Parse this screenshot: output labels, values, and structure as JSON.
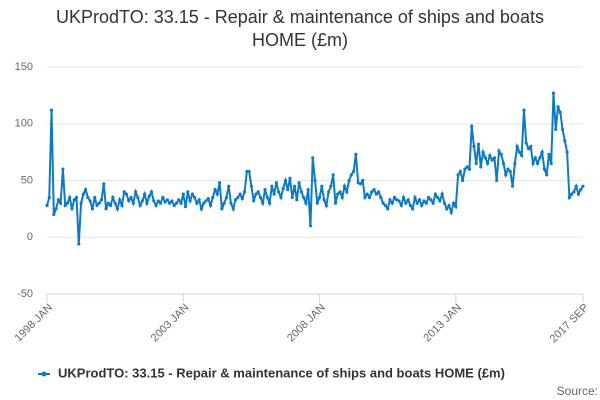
{
  "chart_data": {
    "type": "line",
    "title": "UKProdTO: 33.15 - Repair & maintenance of ships and boats HOME (£m)",
    "source": "Source:",
    "categories": [
      "1998 JAN",
      null,
      null,
      null,
      null,
      null,
      null,
      null,
      null,
      null,
      null,
      null,
      null,
      null,
      null,
      null,
      null,
      null,
      null,
      null,
      null,
      null,
      null,
      null,
      null,
      null,
      null,
      null,
      null,
      null,
      null,
      null,
      null,
      null,
      null,
      null,
      null,
      null,
      null,
      null,
      null,
      null,
      null,
      null,
      null,
      null,
      null,
      null,
      null,
      null,
      null,
      null,
      null,
      null,
      null,
      null,
      null,
      null,
      null,
      null,
      "2003 JAN",
      null,
      null,
      null,
      null,
      null,
      null,
      null,
      null,
      null,
      null,
      null,
      null,
      null,
      null,
      null,
      null,
      null,
      null,
      null,
      null,
      null,
      null,
      null,
      null,
      null,
      null,
      null,
      null,
      null,
      null,
      null,
      null,
      null,
      null,
      null,
      null,
      null,
      null,
      null,
      null,
      null,
      null,
      null,
      null,
      null,
      null,
      null,
      null,
      null,
      null,
      null,
      null,
      null,
      null,
      null,
      null,
      null,
      null,
      null,
      "2008 JAN",
      null,
      null,
      null,
      null,
      null,
      null,
      null,
      null,
      null,
      null,
      null,
      null,
      null,
      null,
      null,
      null,
      null,
      null,
      null,
      null,
      null,
      null,
      null,
      null,
      null,
      null,
      null,
      null,
      null,
      null,
      null,
      null,
      null,
      null,
      null,
      null,
      null,
      null,
      null,
      null,
      null,
      null,
      null,
      null,
      null,
      null,
      null,
      null,
      null,
      null,
      null,
      null,
      null,
      null,
      null,
      null,
      null,
      null,
      null,
      "2013 JAN",
      null,
      null,
      null,
      null,
      null,
      null,
      null,
      null,
      null,
      null,
      null,
      null,
      null,
      null,
      null,
      null,
      null,
      null,
      null,
      null,
      null,
      null,
      null,
      null,
      null,
      null,
      null,
      null,
      null,
      null,
      null,
      null,
      null,
      null,
      null,
      null,
      null,
      null,
      null,
      null,
      null,
      null,
      null,
      null,
      null,
      null,
      null,
      null,
      null,
      null,
      null,
      null,
      null,
      null,
      null,
      "2017 SEP"
    ],
    "series": [
      {
        "name": "UKProdTO: 33.15 - Repair & maintenance of ships and boats HOME (£m)",
        "color": "#0e7ac4",
        "values": [
          28,
          35,
          112,
          20,
          25,
          33,
          30,
          60,
          28,
          30,
          35,
          25,
          33,
          35,
          -6,
          30,
          38,
          42,
          35,
          32,
          25,
          35,
          28,
          30,
          33,
          47,
          25,
          30,
          28,
          35,
          30,
          25,
          33,
          28,
          40,
          38,
          32,
          35,
          30,
          40,
          35,
          28,
          32,
          38,
          30,
          36,
          40,
          32,
          28,
          32,
          30,
          35,
          31,
          33,
          30,
          32,
          28,
          30,
          33,
          30,
          38,
          27,
          40,
          32,
          38,
          35,
          30,
          33,
          25,
          30,
          32,
          34,
          28,
          35,
          42,
          38,
          48,
          25,
          30,
          35,
          45,
          30,
          25,
          33,
          35,
          38,
          34,
          40,
          58,
          58,
          45,
          32,
          38,
          40,
          35,
          30,
          42,
          35,
          30,
          45,
          38,
          48,
          40,
          35,
          43,
          50,
          42,
          52,
          35,
          45,
          33,
          48,
          40,
          35,
          30,
          42,
          10,
          70,
          50,
          30,
          35,
          45,
          33,
          28,
          40,
          45,
          55,
          30,
          38,
          40,
          35,
          45,
          40,
          50,
          55,
          58,
          73,
          48,
          47,
          50,
          35,
          38,
          35,
          40,
          42,
          38,
          40,
          35,
          30,
          28,
          25,
          33,
          30,
          35,
          33,
          32,
          28,
          35,
          30,
          33,
          28,
          25,
          35,
          30,
          33,
          28,
          32,
          30,
          35,
          33,
          30,
          38,
          35,
          32,
          38,
          30,
          25,
          28,
          22,
          30,
          27,
          55,
          58,
          50,
          60,
          62,
          60,
          98,
          80,
          65,
          82,
          62,
          75,
          70,
          65,
          72,
          68,
          70,
          50,
          76,
          73,
          65,
          55,
          60,
          58,
          45,
          65,
          80,
          75,
          72,
          112,
          83,
          78,
          80,
          65,
          70,
          65,
          70,
          75,
          60,
          55,
          73,
          65,
          127,
          95,
          115,
          110,
          95,
          85,
          75,
          35,
          38,
          40,
          45,
          38,
          42,
          45
        ]
      }
    ],
    "ylim": [
      -50,
      150
    ],
    "yticks": [
      -50,
      0,
      50,
      100,
      150
    ],
    "grid": true
  }
}
